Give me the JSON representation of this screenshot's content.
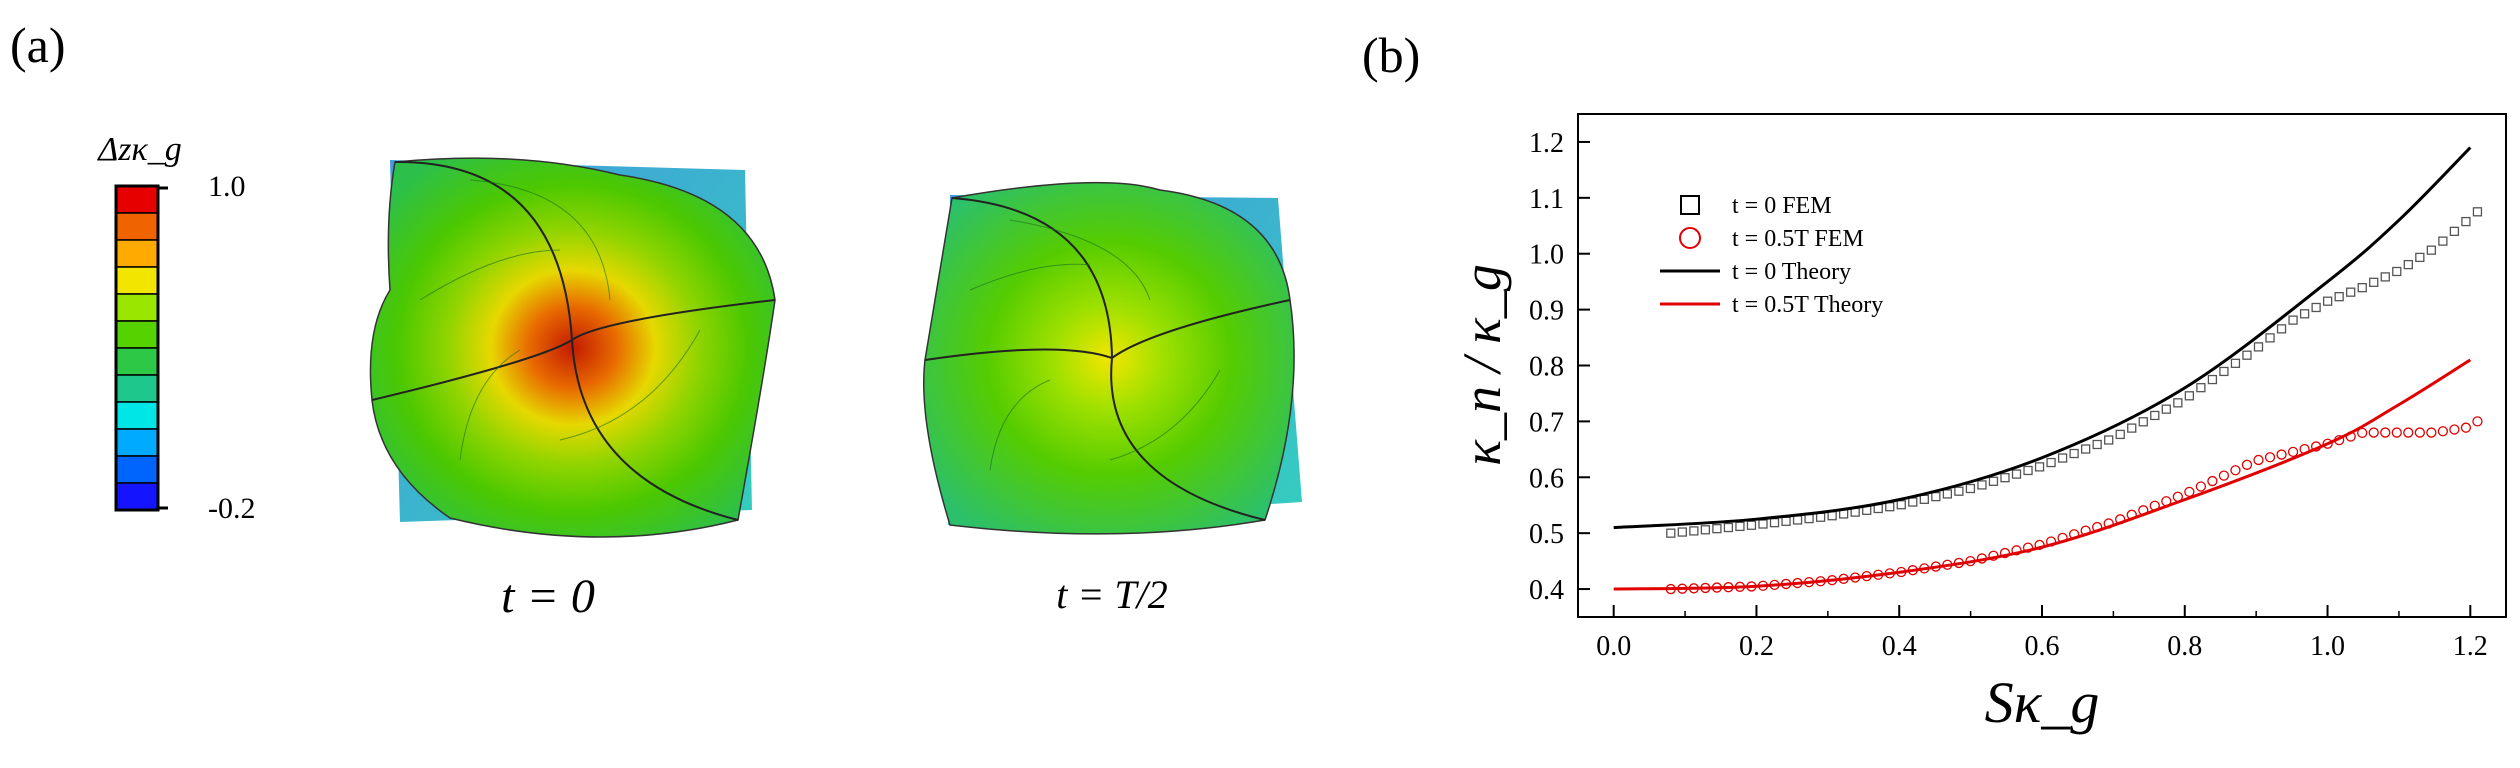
{
  "panels": {
    "a": {
      "label": "(a)",
      "colorbar": {
        "title": "Δzκ_g",
        "max_label": "1.0",
        "min_label": "-0.2",
        "range": [
          -0.2,
          1.0
        ],
        "colors": [
          "#e60000",
          "#f06400",
          "#ffaa00",
          "#f2e600",
          "#9be600",
          "#55d200",
          "#2dc846",
          "#1ec88c",
          "#00e6e6",
          "#00aaff",
          "#0064ff",
          "#1414ff"
        ]
      },
      "shapes": [
        {
          "caption": "t = 0",
          "state": "deformed"
        },
        {
          "caption": "t = T/2",
          "state": "deformed"
        }
      ]
    },
    "b": {
      "label": "(b)"
    }
  },
  "chart_data": {
    "type": "line",
    "xlabel": "Sκ_g",
    "ylabel": "κ_n / κ_g",
    "xlim": [
      -0.05,
      1.25
    ],
    "ylim": [
      0.35,
      1.25
    ],
    "xticks": [
      "0.0",
      "0.2",
      "0.4",
      "0.6",
      "0.8",
      "1.0",
      "1.2"
    ],
    "yticks": [
      "0.4",
      "0.5",
      "0.6",
      "0.7",
      "0.8",
      "0.9",
      "1.0",
      "1.1",
      "1.2"
    ],
    "grid": false,
    "legend_position": "top-left",
    "series": [
      {
        "name": "t = 0 FEM",
        "kind": "markers",
        "marker": "square",
        "color": "#555555",
        "x": [
          0.08,
          0.2,
          0.3,
          0.4,
          0.5,
          0.6,
          0.7,
          0.8,
          0.9,
          0.95,
          1.0,
          1.05,
          1.1,
          1.15,
          1.21
        ],
        "y": [
          0.5,
          0.515,
          0.53,
          0.55,
          0.58,
          0.62,
          0.67,
          0.74,
          0.83,
          0.88,
          0.915,
          0.94,
          0.97,
          1.01,
          1.075
        ]
      },
      {
        "name": "t = 0.5T FEM",
        "kind": "markers",
        "marker": "circle",
        "color": "#e00000",
        "x": [
          0.08,
          0.2,
          0.3,
          0.4,
          0.5,
          0.6,
          0.7,
          0.8,
          0.9,
          1.0,
          1.05,
          1.1,
          1.15,
          1.2,
          1.21
        ],
        "y": [
          0.4,
          0.405,
          0.415,
          0.43,
          0.45,
          0.48,
          0.52,
          0.57,
          0.63,
          0.66,
          0.68,
          0.68,
          0.68,
          0.69,
          0.7
        ]
      },
      {
        "name": "t = 0 Theory",
        "kind": "line",
        "color": "#000000",
        "x": [
          0.0,
          0.2,
          0.4,
          0.6,
          0.8,
          1.0,
          1.1,
          1.2
        ],
        "y": [
          0.51,
          0.525,
          0.56,
          0.635,
          0.76,
          0.95,
          1.06,
          1.19
        ]
      },
      {
        "name": "t = 0.5T Theory",
        "kind": "line",
        "color": "#e00000",
        "x": [
          0.0,
          0.2,
          0.4,
          0.6,
          0.8,
          1.0,
          1.1,
          1.2
        ],
        "y": [
          0.4,
          0.405,
          0.43,
          0.475,
          0.56,
          0.66,
          0.73,
          0.81
        ]
      }
    ]
  }
}
